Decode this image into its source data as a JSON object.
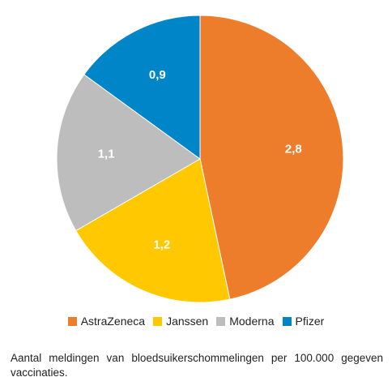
{
  "chart_data": {
    "type": "pie",
    "categories": [
      "AstraZeneca",
      "Janssen",
      "Moderna",
      "Pfizer"
    ],
    "values": [
      2.8,
      1.2,
      1.1,
      0.9
    ],
    "labels": [
      "2,8",
      "1,2",
      "1,1",
      "0,9"
    ],
    "colors": [
      "#EE7D2B",
      "#FFC800",
      "#BDBDBD",
      "#0086C8"
    ],
    "start_angle": "12 o'clock",
    "direction": "clockwise",
    "legend_position": "bottom",
    "caption": "Aantal meldingen van bloedsuikerschommelingen per 100.000 gegeven vaccinaties."
  }
}
